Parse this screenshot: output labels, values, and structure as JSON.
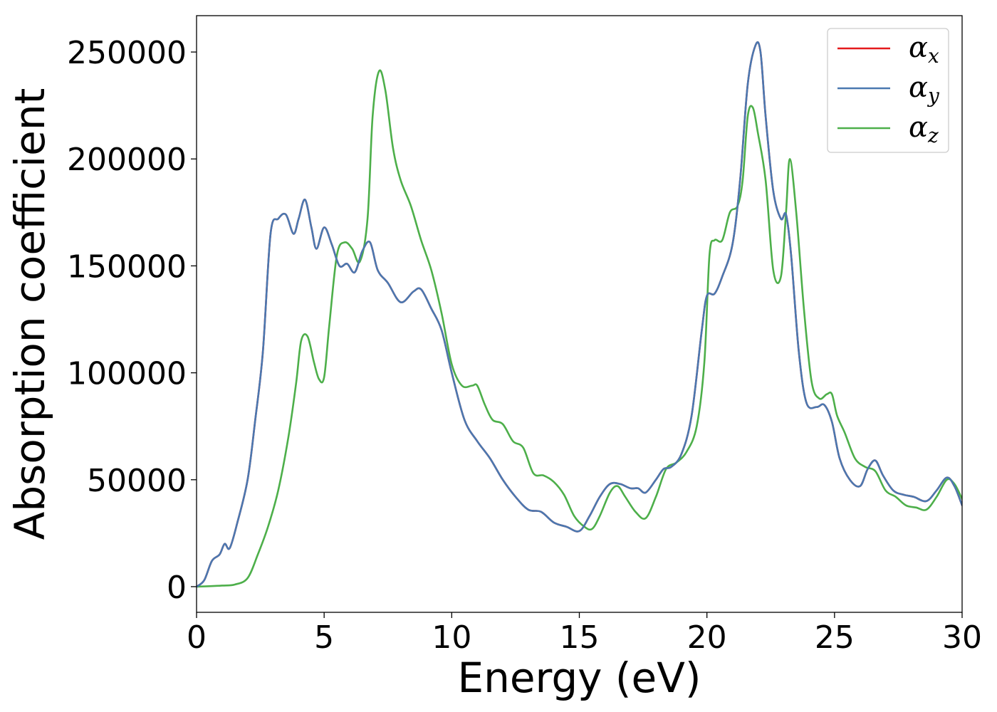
{
  "chart_data": {
    "type": "line",
    "xlabel": "Energy (eV)",
    "ylabel": "Absorption coefficient",
    "xlim": [
      0,
      30
    ],
    "ylim": [
      -12000,
      267000
    ],
    "xticks": [
      0,
      5,
      10,
      15,
      20,
      25,
      30
    ],
    "xtick_labels": [
      "0",
      "5",
      "10",
      "15",
      "20",
      "25",
      "30"
    ],
    "yticks": [
      0,
      50000,
      100000,
      150000,
      200000,
      250000
    ],
    "ytick_labels": [
      "0",
      "50000",
      "100000",
      "150000",
      "200000",
      "250000"
    ],
    "grid": false,
    "legend": {
      "position": "top-right",
      "entries": [
        {
          "symbol": "α",
          "sub": "x",
          "color": "#e41a1c"
        },
        {
          "symbol": "α",
          "sub": "y",
          "color": "#4a78b0"
        },
        {
          "symbol": "α",
          "sub": "z",
          "color": "#4daf4a"
        }
      ]
    },
    "series": [
      {
        "name": "αx",
        "color": "#e41a1c",
        "x": [
          0,
          0.3,
          0.6,
          0.9,
          1.1,
          1.3,
          1.6,
          2.0,
          2.3,
          2.6,
          2.9,
          3.2,
          3.5,
          3.8,
          4.0,
          4.25,
          4.5,
          4.7,
          5.0,
          5.3,
          5.6,
          5.9,
          6.2,
          6.5,
          6.8,
          7.1,
          7.5,
          8.0,
          8.5,
          8.8,
          9.2,
          9.6,
          10.0,
          10.5,
          11.0,
          11.5,
          12.0,
          12.5,
          13.0,
          13.5,
          14.0,
          14.5,
          15.0,
          15.4,
          15.8,
          16.2,
          16.6,
          17.0,
          17.3,
          17.6,
          18.0,
          18.3,
          18.6,
          19.0,
          19.4,
          19.8,
          20.0,
          20.3,
          20.6,
          21.0,
          21.3,
          21.6,
          21.9,
          22.1,
          22.3,
          22.6,
          22.9,
          23.1,
          23.3,
          23.6,
          23.9,
          24.3,
          24.6,
          24.9,
          25.2,
          25.6,
          26.0,
          26.3,
          26.6,
          26.9,
          27.3,
          27.7,
          28.1,
          28.6,
          29.0,
          29.4,
          29.7,
          30.0
        ],
        "y": [
          0,
          3000,
          12000,
          15000,
          20000,
          18000,
          30000,
          50000,
          78000,
          110000,
          165000,
          172000,
          174000,
          165000,
          172000,
          181000,
          168000,
          158000,
          168000,
          160000,
          150000,
          151000,
          147000,
          157000,
          161000,
          148000,
          142000,
          133000,
          138000,
          139000,
          130000,
          120000,
          100000,
          78000,
          68000,
          60000,
          50000,
          42000,
          36000,
          35000,
          30000,
          28000,
          26000,
          33000,
          42000,
          48000,
          48000,
          46000,
          46000,
          44000,
          50000,
          55000,
          56000,
          62000,
          80000,
          120000,
          136000,
          137000,
          145000,
          160000,
          190000,
          235000,
          253000,
          250000,
          220000,
          185000,
          172000,
          174000,
          155000,
          110000,
          86000,
          84000,
          85000,
          77000,
          60000,
          50000,
          47000,
          55000,
          59000,
          52000,
          45000,
          43000,
          42000,
          40000,
          45000,
          51000,
          47000,
          38000
        ]
      },
      {
        "name": "αy",
        "color": "#4a78b0",
        "x": [
          0,
          0.3,
          0.6,
          0.9,
          1.1,
          1.3,
          1.6,
          2.0,
          2.3,
          2.6,
          2.9,
          3.2,
          3.5,
          3.8,
          4.0,
          4.25,
          4.5,
          4.7,
          5.0,
          5.3,
          5.6,
          5.9,
          6.2,
          6.5,
          6.8,
          7.1,
          7.5,
          8.0,
          8.5,
          8.8,
          9.2,
          9.6,
          10.0,
          10.5,
          11.0,
          11.5,
          12.0,
          12.5,
          13.0,
          13.5,
          14.0,
          14.5,
          15.0,
          15.4,
          15.8,
          16.2,
          16.6,
          17.0,
          17.3,
          17.6,
          18.0,
          18.3,
          18.6,
          19.0,
          19.4,
          19.8,
          20.0,
          20.3,
          20.6,
          21.0,
          21.3,
          21.6,
          21.9,
          22.1,
          22.3,
          22.6,
          22.9,
          23.1,
          23.3,
          23.6,
          23.9,
          24.3,
          24.6,
          24.9,
          25.2,
          25.6,
          26.0,
          26.3,
          26.6,
          26.9,
          27.3,
          27.7,
          28.1,
          28.6,
          29.0,
          29.4,
          29.7,
          30.0
        ],
        "y": [
          0,
          3000,
          12000,
          15000,
          20000,
          18000,
          30000,
          50000,
          78000,
          110000,
          165000,
          172000,
          174000,
          165000,
          172000,
          181000,
          168000,
          158000,
          168000,
          160000,
          150000,
          151000,
          147000,
          157000,
          161000,
          148000,
          142000,
          133000,
          138000,
          139000,
          130000,
          120000,
          100000,
          78000,
          68000,
          60000,
          50000,
          42000,
          36000,
          35000,
          30000,
          28000,
          26000,
          33000,
          42000,
          48000,
          48000,
          46000,
          46000,
          44000,
          50000,
          55000,
          56000,
          62000,
          80000,
          120000,
          136000,
          137000,
          145000,
          160000,
          190000,
          235000,
          253000,
          250000,
          220000,
          185000,
          172000,
          174000,
          155000,
          110000,
          86000,
          84000,
          85000,
          77000,
          60000,
          50000,
          47000,
          55000,
          59000,
          52000,
          45000,
          43000,
          42000,
          40000,
          45000,
          51000,
          47000,
          38000
        ]
      },
      {
        "name": "αz",
        "color": "#4daf4a",
        "x": [
          0,
          0.5,
          1.0,
          1.5,
          2.0,
          2.4,
          2.8,
          3.2,
          3.6,
          3.9,
          4.1,
          4.35,
          4.6,
          4.8,
          5.0,
          5.2,
          5.5,
          5.8,
          6.1,
          6.4,
          6.7,
          6.9,
          7.15,
          7.4,
          7.7,
          8.0,
          8.4,
          8.8,
          9.2,
          9.6,
          10.0,
          10.4,
          10.8,
          11.0,
          11.3,
          11.6,
          12.0,
          12.4,
          12.8,
          13.2,
          13.6,
          14.0,
          14.4,
          14.8,
          15.2,
          15.5,
          15.8,
          16.2,
          16.5,
          16.8,
          17.2,
          17.6,
          18.0,
          18.4,
          18.8,
          19.2,
          19.6,
          19.9,
          20.1,
          20.3,
          20.6,
          20.9,
          21.2,
          21.4,
          21.6,
          21.8,
          22.0,
          22.3,
          22.6,
          22.9,
          23.1,
          23.25,
          23.5,
          23.8,
          24.1,
          24.4,
          24.7,
          24.9,
          25.1,
          25.4,
          25.8,
          26.2,
          26.6,
          27.0,
          27.4,
          27.8,
          28.2,
          28.6,
          29.0,
          29.4,
          29.7,
          30.0
        ],
        "y": [
          0,
          200,
          500,
          1000,
          4000,
          15000,
          28000,
          45000,
          70000,
          95000,
          115000,
          117000,
          105000,
          97000,
          98000,
          122000,
          155000,
          161000,
          158000,
          152000,
          172000,
          220000,
          241000,
          232000,
          205000,
          190000,
          178000,
          162000,
          148000,
          128000,
          104000,
          94000,
          94000,
          94000,
          85000,
          78000,
          76000,
          68000,
          65000,
          53000,
          52000,
          49000,
          43000,
          33000,
          28000,
          27000,
          33000,
          44000,
          47000,
          42000,
          35000,
          32000,
          42000,
          55000,
          58000,
          63000,
          75000,
          105000,
          155000,
          162000,
          162000,
          175000,
          178000,
          190000,
          220000,
          224000,
          212000,
          190000,
          148000,
          145000,
          175000,
          200000,
          175000,
          130000,
          96000,
          88000,
          90000,
          90000,
          80000,
          72000,
          60000,
          56000,
          54000,
          45000,
          42000,
          38000,
          37000,
          36000,
          42000,
          50000,
          48000,
          41000
        ]
      }
    ]
  }
}
